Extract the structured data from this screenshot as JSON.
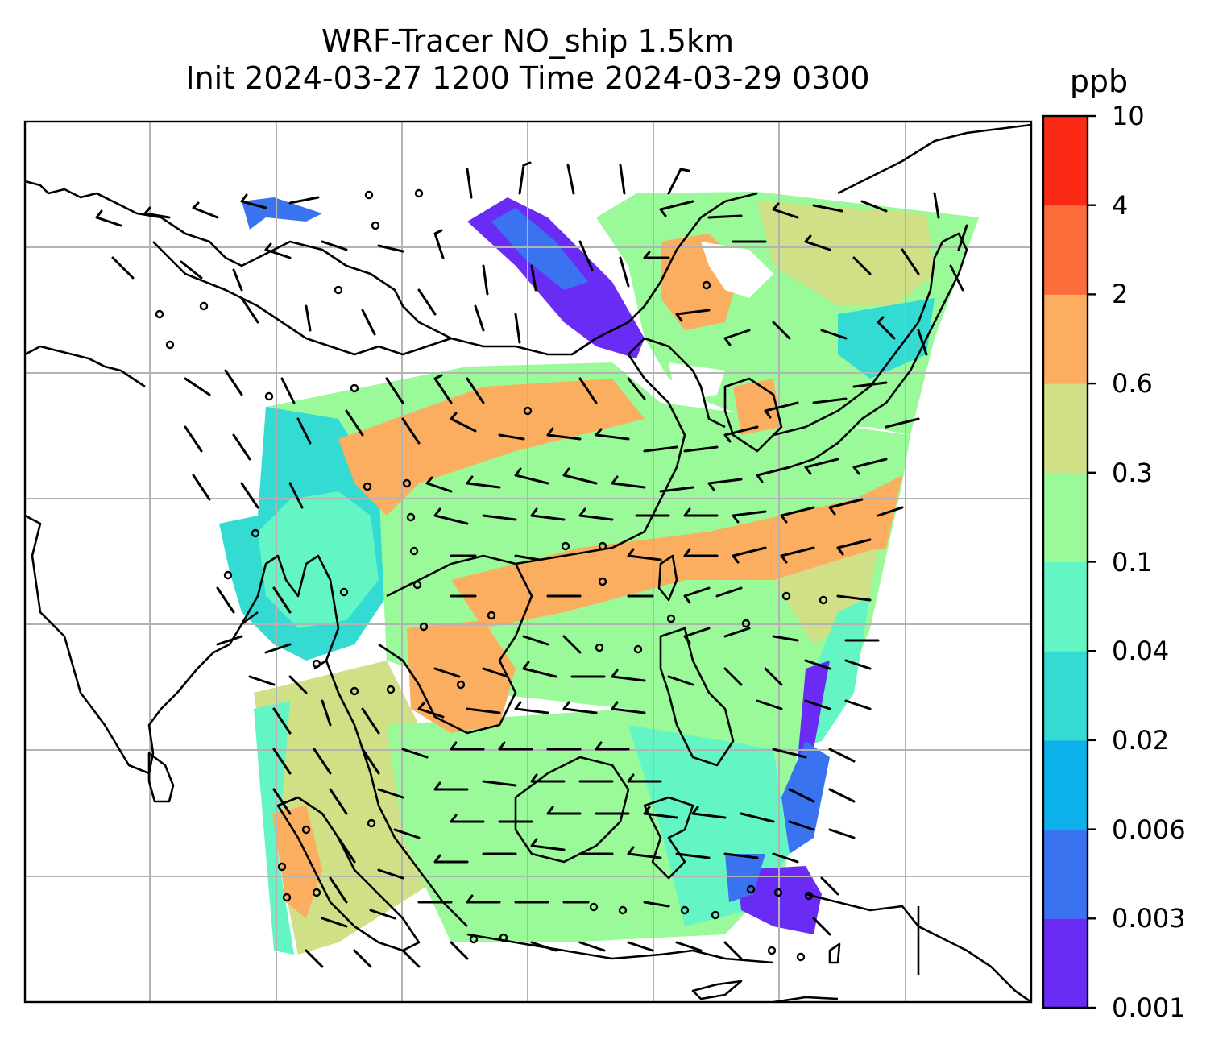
{
  "title": {
    "line1": "WRF-Tracer NO_ship 1.5km",
    "line2": "Init 2024-03-27 1200 Time 2024-03-29 0300"
  },
  "colorbar": {
    "unit": "ppb",
    "ticks": [
      "10",
      "4",
      "2",
      "0.6",
      "0.3",
      "0.1",
      "0.04",
      "0.02",
      "0.006",
      "0.003",
      "0.001"
    ],
    "colors": [
      "#6a2cf5",
      "#3a73f0",
      "#0cb0ea",
      "#33dbd3",
      "#63f5c4",
      "#9afa9a",
      "#cfe086",
      "#fbae5f",
      "#fc6d3c",
      "#fa2a17"
    ]
  },
  "legend_colors": {
    "coast": "#000000",
    "grid": "#b3b3b3",
    "barb": "#000000"
  }
}
